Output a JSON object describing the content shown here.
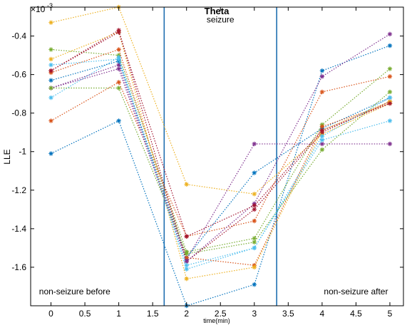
{
  "chart_data": {
    "type": "line",
    "title": "Theta",
    "xlabel": "time(min)",
    "ylabel": "LLE",
    "y_exponent": {
      "base": "×10",
      "power": "-3"
    },
    "xlim": [
      -0.3,
      5.2
    ],
    "ylim": [
      -1.8,
      -0.25
    ],
    "xticks": [
      0,
      0.5,
      1,
      1.5,
      2,
      2.5,
      3,
      3.5,
      4,
      4.5,
      5
    ],
    "xtick_labels": [
      "0",
      "0.5",
      "1",
      "1.5",
      "2",
      "2.5",
      "3",
      "3.5",
      "4",
      "4.5",
      "5"
    ],
    "yticks": [
      -1.6,
      -1.4,
      -1.2,
      -1.0,
      -0.8,
      -0.6,
      -0.4
    ],
    "ytick_labels": [
      "-1.6",
      "-1.4",
      "-1.2",
      "-1",
      "-0.8",
      "-0.6",
      "-0.4"
    ],
    "vertical_lines": [
      1.67,
      3.33
    ],
    "vline_color": "#1f6fb0",
    "annotations": [
      {
        "text": "seizure",
        "x": 2.5,
        "y": -0.33
      },
      {
        "text": "non-seizure before",
        "x": 0.35,
        "y": -1.74
      },
      {
        "text": "non-seizure  after",
        "x": 4.5,
        "y": -1.74
      }
    ],
    "x": [
      0,
      1,
      2,
      3,
      4,
      5
    ],
    "series": [
      {
        "color": "#0072bd",
        "values": [
          -1.01,
          -0.84,
          -1.8,
          -1.69,
          -0.58,
          -0.45
        ]
      },
      {
        "color": "#d95319",
        "values": [
          -0.84,
          -0.64,
          -1.44,
          -1.36,
          -0.69,
          -0.61
        ]
      },
      {
        "color": "#edb120",
        "values": [
          -0.33,
          -0.25,
          -1.17,
          -1.22,
          -0.91,
          -0.75
        ]
      },
      {
        "color": "#7e2f8e",
        "values": [
          -0.67,
          -0.55,
          -1.56,
          -0.96,
          -0.96,
          -0.96
        ]
      },
      {
        "color": "#77ac30",
        "values": [
          -0.47,
          -0.5,
          -1.52,
          -1.45,
          -0.86,
          -0.57
        ]
      },
      {
        "color": "#4dbeee",
        "values": [
          -0.72,
          -0.51,
          -1.61,
          -1.5,
          -0.94,
          -0.84
        ]
      },
      {
        "color": "#a2142f",
        "values": [
          -0.58,
          -0.37,
          -1.57,
          -1.3,
          -0.9,
          -0.74
        ]
      },
      {
        "color": "#0072bd",
        "values": [
          -0.63,
          -0.53,
          -1.55,
          -1.11,
          -0.88,
          -0.72
        ]
      },
      {
        "color": "#d95319",
        "values": [
          -0.59,
          -0.47,
          -1.55,
          -1.59,
          -0.87,
          -0.75
        ]
      },
      {
        "color": "#edb120",
        "values": [
          -0.52,
          -0.38,
          -1.66,
          -1.6,
          -0.89,
          -0.74
        ]
      },
      {
        "color": "#7e2f8e",
        "values": [
          -0.67,
          -0.57,
          -1.57,
          -1.27,
          -0.61,
          -0.39
        ]
      },
      {
        "color": "#77ac30",
        "values": [
          -0.67,
          -0.67,
          -1.53,
          -1.47,
          -0.99,
          -0.69
        ]
      },
      {
        "color": "#4dbeee",
        "values": [
          -0.55,
          -0.52,
          -1.59,
          -1.5,
          -0.92,
          -0.72
        ]
      },
      {
        "color": "#a2142f",
        "values": [
          -0.58,
          -0.38,
          -1.44,
          -1.28,
          -0.89,
          -0.75
        ]
      }
    ]
  }
}
